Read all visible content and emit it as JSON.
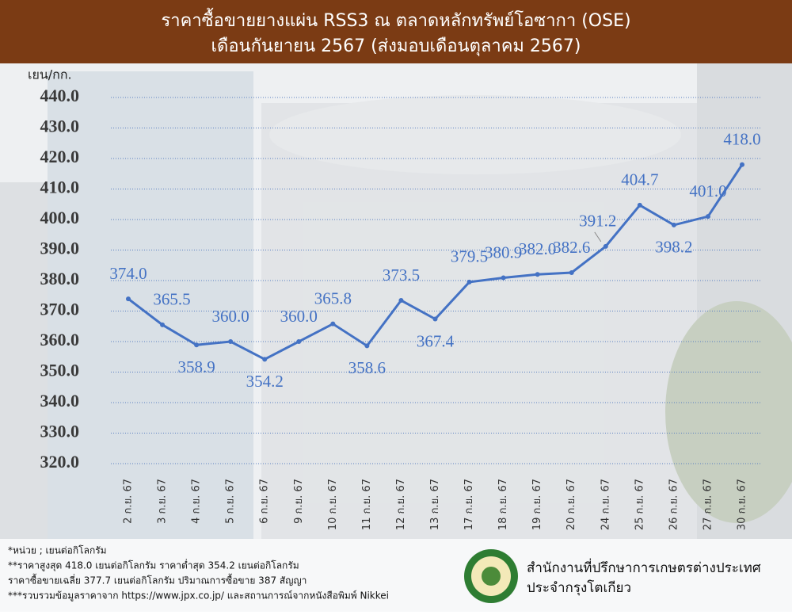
{
  "chart_data": {
    "type": "line",
    "title": "ราคาซื้อขายยางแผ่น RSS3 ณ ตลาดหลักทรัพย์โอซากา (OSE)",
    "subtitle": "เดือนกันยายน 2567 (ส่งมอบเดือนตุลาคม 2567)",
    "y_label": "เยน/กก.",
    "categories": [
      "2 ก.ย. 67",
      "3 ก.ย. 67",
      "4 ก.ย. 67",
      "5 ก.ย. 67",
      "6 ก.ย. 67",
      "9 ก.ย. 67",
      "10 ก.ย. 67",
      "11 ก.ย. 67",
      "12 ก.ย. 67",
      "13 ก.ย. 67",
      "17 ก.ย. 67",
      "18 ก.ย. 67",
      "19 ก.ย. 67",
      "20 ก.ย. 67",
      "24 ก.ย. 67",
      "25 ก.ย. 67",
      "26 ก.ย. 67",
      "27 ก.ย. 67",
      "30 ก.ย. 67"
    ],
    "values": [
      374.0,
      365.5,
      358.9,
      360.0,
      354.2,
      360.0,
      365.8,
      358.6,
      373.5,
      367.4,
      379.5,
      380.9,
      382.0,
      382.6,
      391.2,
      404.7,
      398.2,
      401.0,
      418.0
    ],
    "value_labels": [
      "374.0",
      "365.5",
      "358.9",
      "360.0",
      "354.2",
      "360.0",
      "365.8",
      "358.6",
      "373.5",
      "367.4",
      "379.5",
      "380.9",
      "382.0",
      "382.6",
      "391.2",
      "404.7",
      "398.2",
      "401.0",
      "418.0"
    ],
    "color": "#4472c4",
    "ylim": [
      320,
      440
    ],
    "yticks": [
      {
        "value": 320,
        "label": "320.0"
      },
      {
        "value": 330,
        "label": "330.0"
      },
      {
        "value": 340,
        "label": "340.0"
      },
      {
        "value": 350,
        "label": "350.0"
      },
      {
        "value": 360,
        "label": "360.0"
      },
      {
        "value": 370,
        "label": "370.0"
      },
      {
        "value": 380,
        "label": "380.0"
      },
      {
        "value": 390,
        "label": "390.0"
      },
      {
        "value": 400,
        "label": "400.0"
      },
      {
        "value": 410,
        "label": "410.0"
      },
      {
        "value": 420,
        "label": "420.0"
      },
      {
        "value": 430,
        "label": "430.0"
      },
      {
        "value": 440,
        "label": "440.0"
      }
    ],
    "grid": true
  },
  "notes": [
    "*หน่วย ; เยนต่อกิโลกรัม",
    "**ราคาสูงสุด 418.0 เยนต่อกิโลกรัม ราคาต่ำสุด 354.2 เยนต่อกิโลกรัม",
    "ราคาซื้อขายเฉลี่ย 377.7 เยนต่อกิโลกรัม ปริมาณการซื้อขาย 387 สัญญา",
    "***รวบรวมข้อมูลราคาจาก https://www.jpx.co.jp/ และสถานการณ์จากหนังสือพิมพ์ Nikkei"
  ],
  "office": [
    "สำนักงานที่ปรึกษาการเกษตรต่างประเทศ",
    "ประจำกรุงโตเกียว"
  ]
}
